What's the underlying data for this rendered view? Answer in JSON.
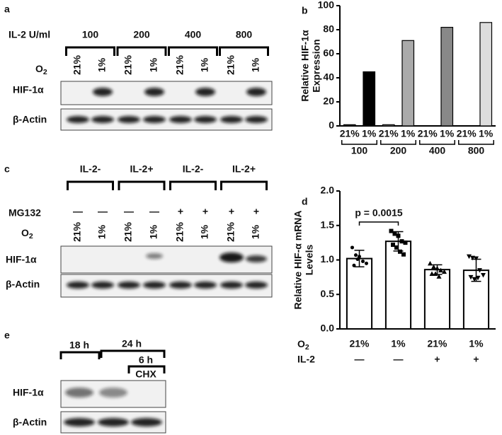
{
  "panels": {
    "a": {
      "label": "a",
      "dose_label": "IL-2 U/ml",
      "doses": [
        "100",
        "200",
        "400",
        "800"
      ],
      "o2_label": "O",
      "o2_sub": "2",
      "lanes": [
        "21%",
        "1%",
        "21%",
        "1%",
        "21%",
        "1%",
        "21%",
        "1%"
      ],
      "rows": [
        "HIF-1α",
        "β-Actin"
      ]
    },
    "c": {
      "label": "c",
      "groups": [
        "IL-2-",
        "IL-2+",
        "IL-2-",
        "IL-2+"
      ],
      "mg_label": "MG132",
      "mg": [
        "—",
        "—",
        "—",
        "—",
        "+",
        "+",
        "+",
        "+"
      ],
      "o2_label": "O",
      "o2_sub": "2",
      "lanes": [
        "21%",
        "1%",
        "21%",
        "1%",
        "21%",
        "1%",
        "21%",
        "1%"
      ],
      "rows": [
        "HIF-1α",
        "β-Actin"
      ]
    },
    "e": {
      "label": "e",
      "times": [
        "18 h",
        "24 h",
        "6 h"
      ],
      "treatment": "CHX",
      "rows": [
        "HIF-1α",
        "β-Actin"
      ]
    }
  },
  "chart_data": [
    {
      "type": "bar",
      "panel_label": "b",
      "ylabel": [
        "Relative HIF-1α",
        "Expression"
      ],
      "categories": [
        "21%",
        "1%",
        "21%",
        "1%",
        "21%",
        "1%",
        "21%",
        "1%"
      ],
      "groups": [
        "100",
        "200",
        "400",
        "800"
      ],
      "values": [
        1,
        45,
        1,
        71,
        0,
        82,
        0,
        86
      ],
      "colors": [
        "#000000",
        "#000000",
        "#aaaaaa",
        "#aaaaaa",
        "#888888",
        "#888888",
        "#dddddd",
        "#dddddd"
      ],
      "ylim": [
        0,
        100
      ],
      "yticks": [
        0,
        20,
        40,
        60,
        80,
        100
      ]
    },
    {
      "type": "bar_error",
      "panel_label": "d",
      "ylabel": [
        "Relative HIF-α mRNA",
        "Levels"
      ],
      "categories": [
        "21%",
        "1%",
        "21%",
        "1%"
      ],
      "x_label": "O",
      "x_label_sub": "2",
      "row2_label": "IL-2",
      "row2": [
        "—",
        "—",
        "+",
        "+"
      ],
      "values": [
        1.02,
        1.27,
        0.86,
        0.85
      ],
      "errors": [
        0.12,
        0.14,
        0.07,
        0.16
      ],
      "points": [
        [
          1.18,
          1.07,
          1.05,
          0.98,
          0.95,
          0.92,
          1.01
        ],
        [
          1.42,
          1.38,
          1.35,
          1.27,
          1.25,
          1.22,
          1.18,
          1.12,
          1.08
        ],
        [
          0.95,
          0.9,
          0.88,
          0.85,
          0.83,
          0.8,
          0.8,
          0.76
        ],
        [
          1.05,
          1.03,
          1.02,
          0.85,
          0.78,
          0.75,
          0.72,
          0.74
        ]
      ],
      "annotation": "p = 0.0015",
      "color": "#ffffff",
      "ylim": [
        0,
        2
      ],
      "yticks": [
        {
          "value": 0,
          "label": "0.0"
        },
        0.5,
        {
          "value": 1,
          "label": "1.0"
        },
        1.5,
        {
          "value": 2,
          "label": "2.0"
        }
      ]
    }
  ]
}
